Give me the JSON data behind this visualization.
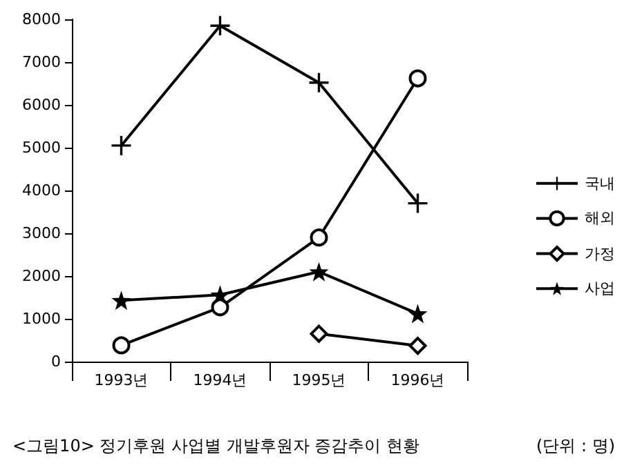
{
  "chart_data": {
    "type": "line",
    "title": "<그림10> 정기후원 사업별 개발후원자 증감추이 현황",
    "annotations": [
      "(단위 : 명)"
    ],
    "categories": [
      "1993년",
      "1994년",
      "1995년",
      "1996년"
    ],
    "series": [
      {
        "name": "국내",
        "color": "#000000",
        "marker": "cross",
        "values": [
          5050,
          7850,
          6520,
          3700
        ]
      },
      {
        "name": "해외",
        "color": "#000000",
        "marker": "circle",
        "values": [
          380,
          1270,
          2900,
          6620
        ]
      },
      {
        "name": "가정",
        "color": "#000000",
        "marker": "diamond",
        "values": [
          null,
          null,
          650,
          370
        ]
      },
      {
        "name": "사업",
        "color": "#000000",
        "marker": "star",
        "values": [
          1430,
          1560,
          2100,
          1120
        ]
      }
    ],
    "ylim": [
      0,
      8000
    ],
    "yticks": [
      0,
      1000,
      2000,
      3000,
      4000,
      5000,
      6000,
      7000,
      8000
    ],
    "grid": false,
    "legend": "right",
    "line_style": "solid"
  }
}
